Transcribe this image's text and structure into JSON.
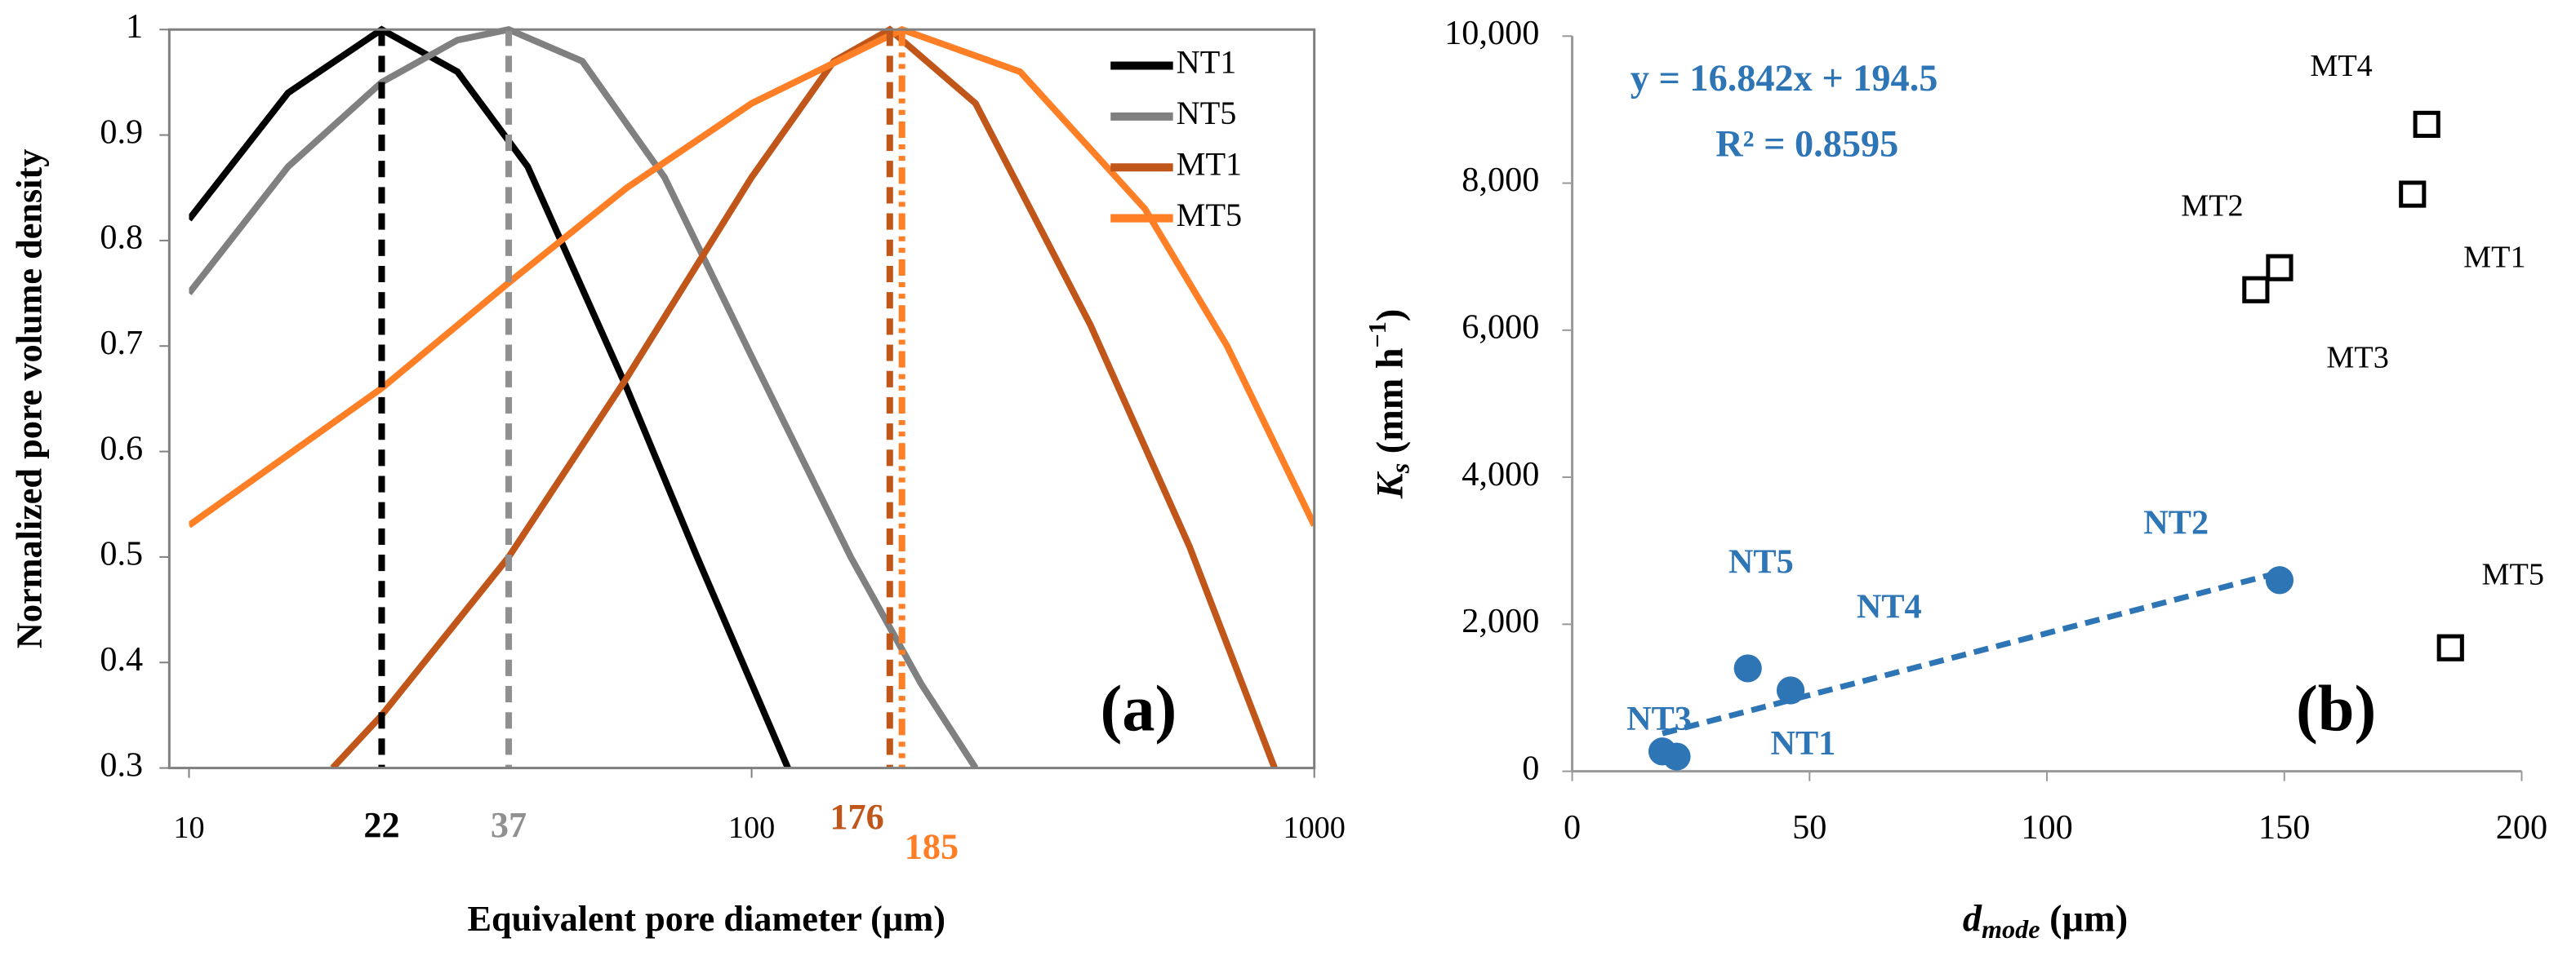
{
  "chart_data": [
    {
      "type": "line",
      "panel_label": "(a)",
      "ylabel": "Normalized pore volume density",
      "xlabel": "Equivalent pore diameter (µm)",
      "xscale": "log",
      "xlim": [
        10,
        1000
      ],
      "xticks": [
        10,
        100,
        1000
      ],
      "ylim": [
        0.3,
        1
      ],
      "yticks": [
        0.3,
        0.4,
        0.5,
        0.6,
        0.7,
        0.8,
        0.9,
        1
      ],
      "legend": "upper right",
      "series": [
        {
          "name": "NT1",
          "color": "#000000",
          "x": [
            10,
            15,
            22,
            30,
            40,
            60,
            80,
            100,
            116
          ],
          "values": [
            0.82,
            0.94,
            1,
            0.96,
            0.87,
            0.66,
            0.5,
            0.38,
            0.3
          ]
        },
        {
          "name": "NT5",
          "color": "#808080",
          "x": [
            10,
            15,
            22,
            30,
            37,
            50,
            70,
            100,
            150,
            200,
            250
          ],
          "values": [
            0.75,
            0.87,
            0.95,
            0.99,
            1,
            0.97,
            0.86,
            0.69,
            0.5,
            0.38,
            0.3
          ]
        },
        {
          "name": "MT1",
          "color": "#c0561a",
          "x": [
            18,
            22,
            37,
            60,
            100,
            140,
            176,
            250,
            400,
            600,
            850
          ],
          "values": [
            0.3,
            0.35,
            0.5,
            0.67,
            0.86,
            0.97,
            1,
            0.93,
            0.72,
            0.51,
            0.3
          ]
        },
        {
          "name": "MT5",
          "color": "#ff7f27",
          "x": [
            10,
            22,
            37,
            60,
            100,
            185,
            300,
            500,
            700,
            1000
          ],
          "values": [
            0.53,
            0.66,
            0.76,
            0.85,
            0.93,
            1,
            0.96,
            0.83,
            0.7,
            0.53
          ]
        }
      ],
      "mode_lines": [
        {
          "x": 22,
          "color": "#000000",
          "style": "dash"
        },
        {
          "x": 37,
          "color": "#909090",
          "style": "dash"
        },
        {
          "x": 176,
          "color": "#c0561a",
          "style": "dash"
        },
        {
          "x": 185,
          "color": "#ff7f27",
          "style": "dashdot"
        }
      ]
    },
    {
      "type": "scatter",
      "panel_label": "(b)",
      "ylabel_parts": [
        "K",
        "s",
        " (mm h",
        "−1",
        ")"
      ],
      "xlabel_parts": [
        "d",
        "mode",
        " (µm)"
      ],
      "xlim": [
        0,
        200
      ],
      "xticks": [
        0,
        50,
        100,
        150,
        200
      ],
      "ylim": [
        0,
        10000
      ],
      "yticks": [
        0,
        {
          "value": 2000,
          "label": "2,000"
        },
        {
          "value": 4000,
          "label": "4,000"
        },
        {
          "value": 6000,
          "label": "6,000"
        },
        {
          "value": 8000,
          "label": "8,000"
        },
        {
          "value": 10000,
          "label": "10,000"
        }
      ],
      "series": [
        {
          "color": "#2e75b6",
          "marker": "circle",
          "labels": [
            "NT1",
            "NT2",
            "NT3",
            "NT4",
            "NT5"
          ],
          "x": [
            22,
            149,
            19,
            46,
            37
          ],
          "values": [
            200,
            2600,
            270,
            1100,
            1400
          ]
        },
        {
          "color": "#000000",
          "marker": "square",
          "labels": [
            "MT1",
            "MT2",
            "MT3",
            "MT4",
            "MT5"
          ],
          "x": [
            177,
            149,
            144,
            180,
            185
          ],
          "values": [
            7850,
            6850,
            6550,
            8800,
            1680
          ]
        }
      ],
      "trendline": {
        "series": 0,
        "slope": 16.842,
        "intercept": 194.5,
        "equation": "y = 16.842x + 194.5",
        "r2_label": "R² = 0.8595",
        "color": "#2e75b6",
        "style": "dash"
      }
    }
  ]
}
